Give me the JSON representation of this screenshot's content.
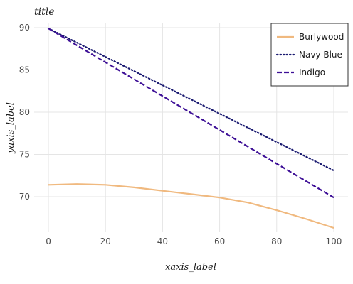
{
  "chart_data": {
    "type": "line",
    "title": "title",
    "xlabel": "xaxis_label",
    "ylabel": "yaxis_label",
    "xlim": [
      -5,
      105
    ],
    "ylim": [
      65.8,
      90.5
    ],
    "xticks": [
      0,
      20,
      40,
      60,
      80,
      100
    ],
    "yticks": [
      70,
      75,
      80,
      85,
      90
    ],
    "grid": true,
    "legend_position": "top-right",
    "series": [
      {
        "name": "Burlywood",
        "color": "#f0b97f",
        "style": "solid",
        "x": [
          0,
          10,
          20,
          30,
          40,
          50,
          60,
          70,
          80,
          90,
          100
        ],
        "y": [
          71.4,
          71.5,
          71.4,
          71.1,
          70.7,
          70.3,
          69.9,
          69.3,
          68.4,
          67.4,
          66.3
        ]
      },
      {
        "name": "Navy Blue",
        "color": "#191970",
        "style": "dotted",
        "x": [
          0,
          100
        ],
        "y": [
          89.9,
          73.1
        ]
      },
      {
        "name": "Indigo",
        "color": "#3d0f96",
        "style": "dashed",
        "x": [
          0,
          100
        ],
        "y": [
          89.9,
          69.9
        ]
      }
    ]
  }
}
